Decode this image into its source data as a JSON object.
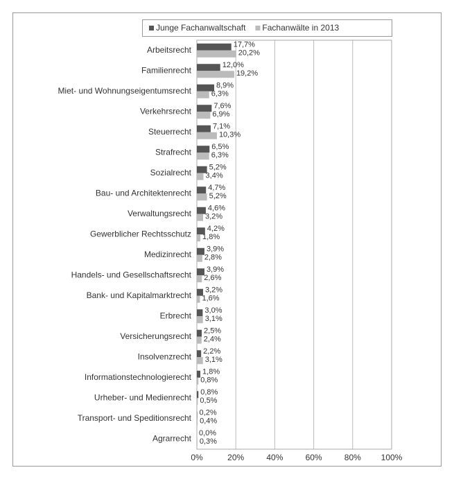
{
  "chart_data": {
    "type": "hbar",
    "categories": [
      "Arbeitsrecht",
      "Familienrecht",
      "Miet- und Wohnungseigentumsrecht",
      "Verkehrsrecht",
      "Steuerrecht",
      "Strafrecht",
      "Sozialrecht",
      "Bau- und Architektenrecht",
      "Verwaltungsrecht",
      "Gewerblicher Rechtsschutz",
      "Medizinrecht",
      "Handels- und Gesellschaftsrecht",
      "Bank- und Kapitalmarktrecht",
      "Erbrecht",
      "Versicherungsrecht",
      "Insolvenzrecht",
      "Informationstechnologierecht",
      "Urheber- und Medienrecht",
      "Transport- und Speditionsrecht",
      "Agrarrecht"
    ],
    "series": [
      {
        "name": "Junge Fachanwaltschaft",
        "color": "#555555",
        "values": [
          17.7,
          12.0,
          8.9,
          7.6,
          7.1,
          6.5,
          5.2,
          4.7,
          4.6,
          4.2,
          3.9,
          3.9,
          3.2,
          3.0,
          2.5,
          2.2,
          1.8,
          0.8,
          0.2,
          0.0
        ],
        "value_labels": [
          "17,7%",
          "12,0%",
          "8,9%",
          "7,6%",
          "7,1%",
          "6,5%",
          "5,2%",
          "4,7%",
          "4,6%",
          "4,2%",
          "3,9%",
          "3,9%",
          "3,2%",
          "3,0%",
          "2,5%",
          "2,2%",
          "1,8%",
          "0,8%",
          "0,2%",
          "0,0%"
        ]
      },
      {
        "name": "Fachanwälte in 2013",
        "color": "#bbbbbb",
        "values": [
          20.2,
          19.2,
          6.3,
          6.9,
          10.3,
          6.3,
          3.4,
          5.2,
          3.2,
          1.8,
          2.8,
          2.6,
          1.6,
          3.1,
          2.4,
          3.1,
          0.8,
          0.5,
          0.4,
          0.3
        ],
        "value_labels": [
          "20,2%",
          "19,2%",
          "6,3%",
          "6,9%",
          "10,3%",
          "6,3%",
          "3,4%",
          "5,2%",
          "3,2%",
          "1,8%",
          "2,8%",
          "2,6%",
          "1,6%",
          "3,1%",
          "2,4%",
          "3,1%",
          "0,8%",
          "0,5%",
          "0,4%",
          "0,3%"
        ]
      }
    ],
    "xlim": [
      0,
      100
    ],
    "xticks": [
      {
        "value": 0,
        "label": "0%"
      },
      {
        "value": 20,
        "label": "20%"
      },
      {
        "value": 40,
        "label": "40%"
      },
      {
        "value": 60,
        "label": "60%"
      },
      {
        "value": 80,
        "label": "80%"
      },
      {
        "value": 100,
        "label": "100%"
      }
    ],
    "grid": true
  }
}
